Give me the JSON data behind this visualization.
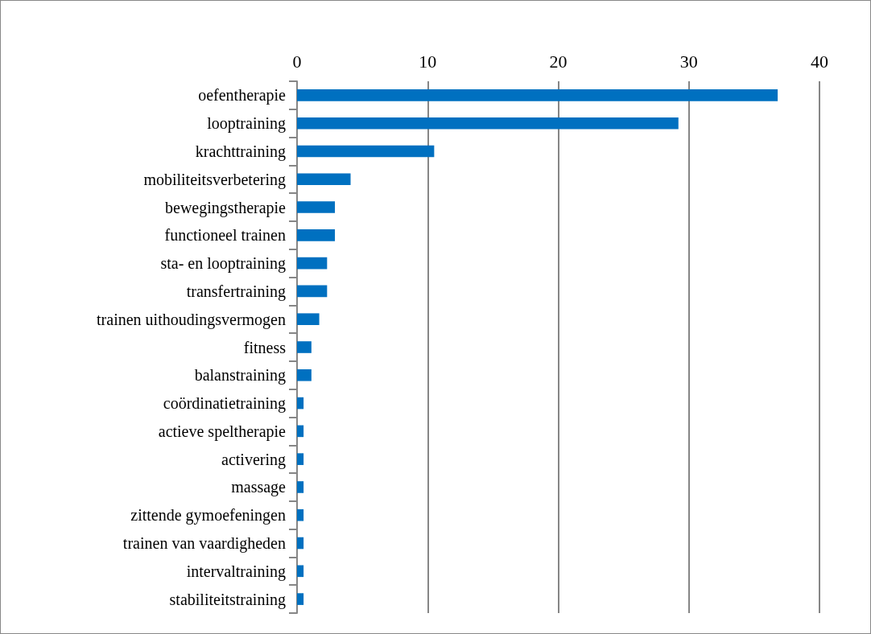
{
  "chart_data": {
    "type": "bar",
    "orientation": "horizontal",
    "categories": [
      "oefentherapie",
      "looptraining",
      "krachttraining",
      "mobiliteitsverbetering",
      "bewegingstherapie",
      "functioneel trainen",
      "sta- en looptraining",
      "transfertraining",
      "trainen uithoudingsvermogen",
      "fitness",
      "balanstraining",
      "coördinatietraining",
      "actieve speltherapie",
      "activering",
      "massage",
      "zittende gymoefeningen",
      "trainen van vaardigheden",
      "intervaltraining",
      "stabiliteitstraining"
    ],
    "values": [
      36.8,
      29.2,
      10.5,
      4.1,
      2.9,
      2.9,
      2.3,
      2.3,
      1.7,
      1.1,
      1.1,
      0.5,
      0.5,
      0.5,
      0.5,
      0.5,
      0.5,
      0.5,
      0.5
    ],
    "color": "#0070c0",
    "xlim": [
      0,
      40
    ],
    "xticks": [
      0,
      10,
      20,
      30,
      40
    ],
    "grid": "x"
  }
}
